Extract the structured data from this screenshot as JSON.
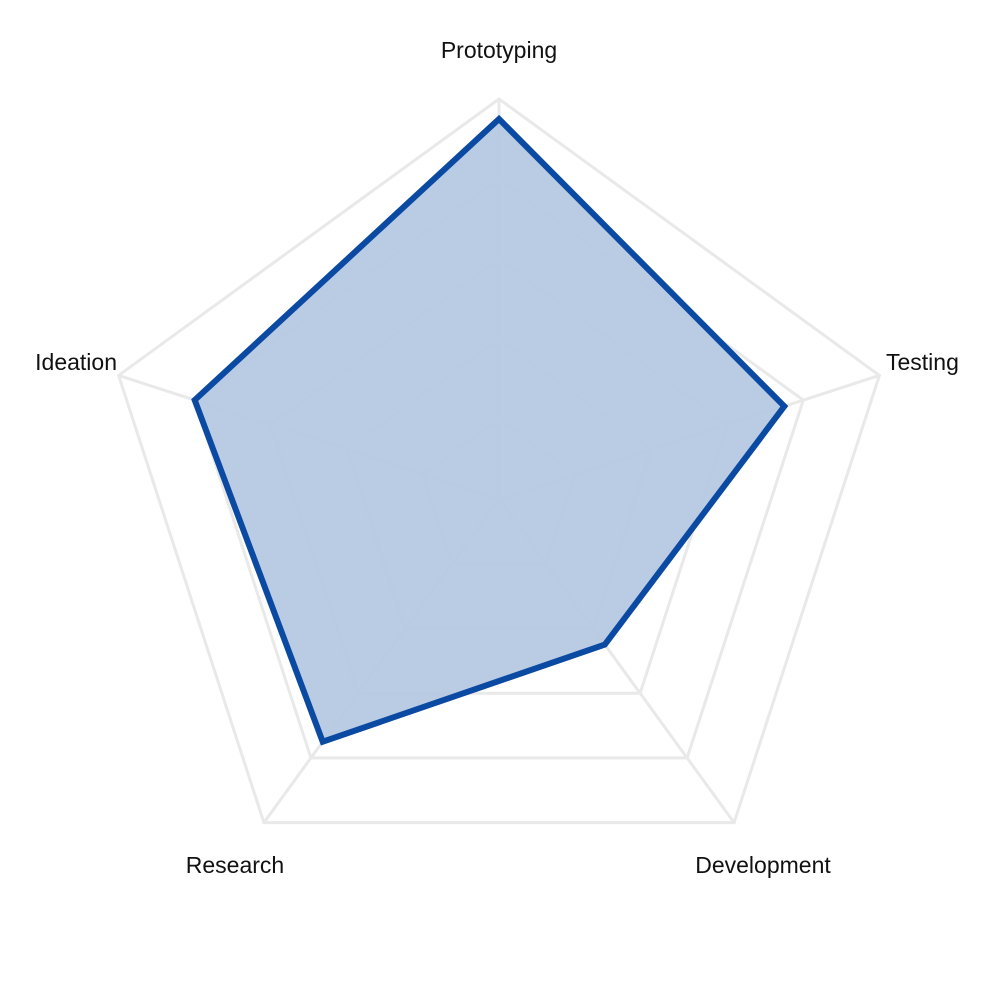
{
  "chart_data": {
    "type": "radar",
    "axes": [
      "Prototyping",
      "Testing",
      "Development",
      "Research",
      "Ideation"
    ],
    "series": [
      {
        "values": [
          9.5,
          7.5,
          4.5,
          7.5,
          8.0
        ]
      }
    ],
    "range": [
      0,
      10
    ],
    "ring_levels": [
      2,
      4,
      6,
      8,
      10
    ],
    "grid": true,
    "legend": "none",
    "colors": {
      "grid": "#e9e9ea",
      "line": "#0b4aa2",
      "fill": "#b6c8e3"
    }
  }
}
